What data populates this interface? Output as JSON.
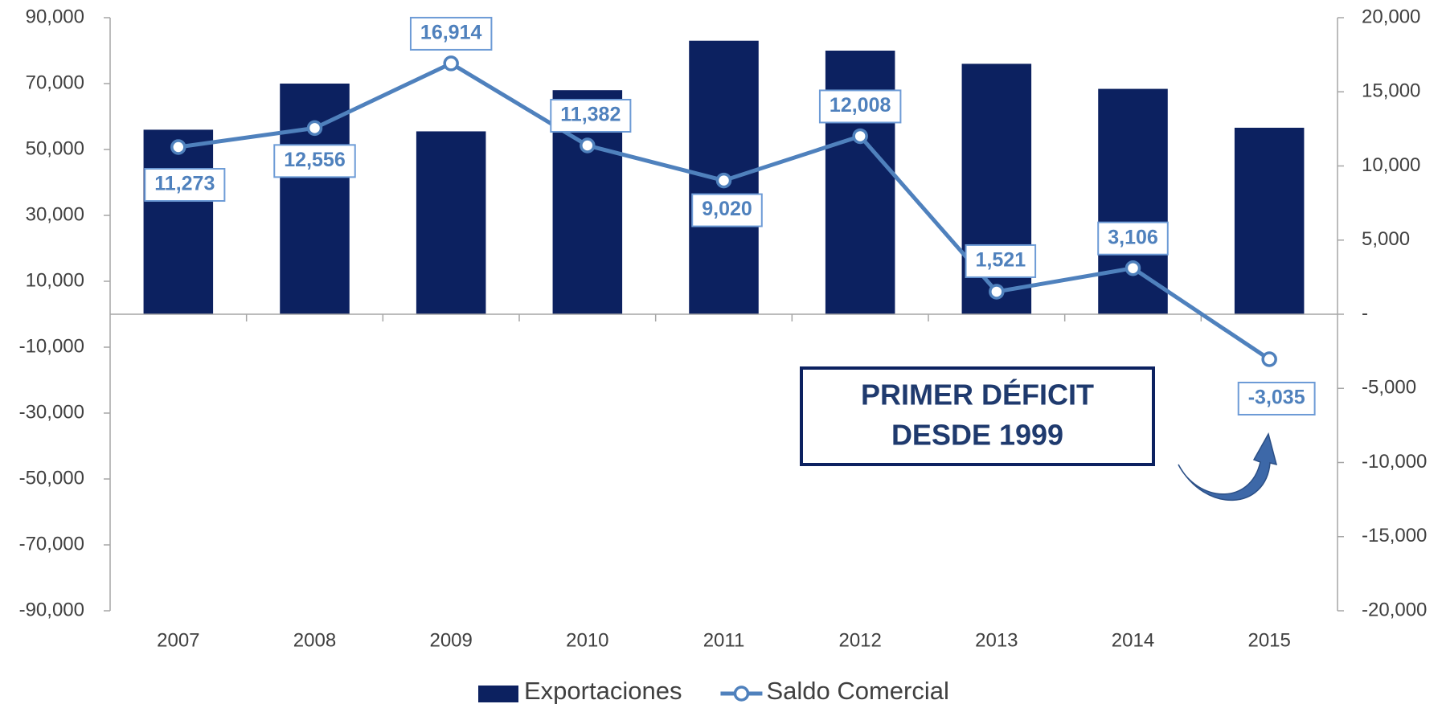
{
  "chart_data": {
    "type": "bar-line",
    "categories": [
      "2007",
      "2008",
      "2009",
      "2010",
      "2011",
      "2012",
      "2013",
      "2014",
      "2015"
    ],
    "series": [
      {
        "name": "Exportaciones",
        "type": "bar",
        "color": "#0c2160",
        "values": [
          56000,
          70000,
          55500,
          68000,
          83000,
          80000,
          76000,
          68400,
          56600
        ]
      },
      {
        "name": "Saldo Comercial",
        "type": "line",
        "axis": "y2",
        "color": "#4f81bd",
        "values": [
          11273,
          12556,
          16914,
          11382,
          9020,
          12008,
          1521,
          3106,
          -3035
        ],
        "value_labels": [
          "11,273",
          "12,556",
          "16,914",
          "11,382",
          "9,020",
          "12,008",
          "1,521",
          "3,106",
          "-3,035"
        ]
      }
    ],
    "ylim": [
      -90000,
      90000
    ],
    "yticks": [
      {
        "value": 90000,
        "label": "90,000"
      },
      {
        "value": 70000,
        "label": "70,000"
      },
      {
        "value": 50000,
        "label": "50,000"
      },
      {
        "value": 30000,
        "label": "30,000"
      },
      {
        "value": 10000,
        "label": "10,000"
      },
      {
        "value": -10000,
        "label": "-10,000"
      },
      {
        "value": -30000,
        "label": "-30,000"
      },
      {
        "value": -50000,
        "label": "-50,000"
      },
      {
        "value": -70000,
        "label": "-70,000"
      },
      {
        "value": -90000,
        "label": "-90,000"
      }
    ],
    "y2lim": [
      -20000,
      20000
    ],
    "y2ticks": [
      {
        "value": 20000,
        "label": "20,000"
      },
      {
        "value": 15000,
        "label": "15,000"
      },
      {
        "value": 10000,
        "label": "10,000"
      },
      {
        "value": 5000,
        "label": "5,000"
      },
      {
        "value": 0,
        "label": "-"
      },
      {
        "value": -5000,
        "label": "-5,000"
      },
      {
        "value": -10000,
        "label": "-10,000"
      },
      {
        "value": -15000,
        "label": "-15,000"
      },
      {
        "value": -20000,
        "label": "-20,000"
      }
    ],
    "grid": false,
    "legend": "bottom",
    "annotation": [
      "PRIMER DÉFICIT",
      "DESDE 1999"
    ]
  }
}
